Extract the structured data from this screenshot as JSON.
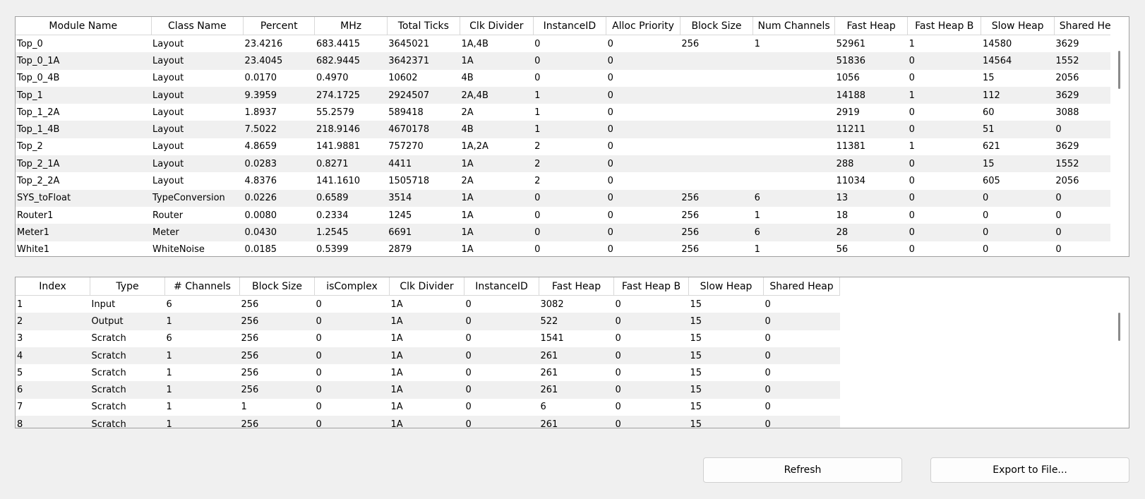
{
  "top": {
    "columns": [
      "Module Name",
      "Class Name",
      "Percent",
      "MHz",
      "Total Ticks",
      "Clk Divider",
      "InstanceID",
      "Alloc Priority",
      "Block Size",
      "Num Channels",
      "Fast Heap",
      "Fast Heap B",
      "Slow Heap",
      "Shared Heap"
    ],
    "rows": [
      [
        "Top_0",
        "Layout",
        "23.4216",
        "683.4415",
        "3645021",
        "1A,4B",
        "0",
        "0",
        "256",
        "1",
        "52961",
        "1",
        "14580",
        "3629"
      ],
      [
        "Top_0_1A",
        "Layout",
        "23.4045",
        "682.9445",
        "3642371",
        "1A",
        "0",
        "0",
        null,
        null,
        "51836",
        "0",
        "14564",
        "1552"
      ],
      [
        "Top_0_4B",
        "Layout",
        "0.0170",
        "0.4970",
        "10602",
        "4B",
        "0",
        "0",
        null,
        null,
        "1056",
        "0",
        "15",
        "2056"
      ],
      [
        "Top_1",
        "Layout",
        "9.3959",
        "274.1725",
        "2924507",
        "2A,4B",
        "1",
        "0",
        null,
        null,
        "14188",
        "1",
        "112",
        "3629"
      ],
      [
        "Top_1_2A",
        "Layout",
        "1.8937",
        "55.2579",
        "589418",
        "2A",
        "1",
        "0",
        null,
        null,
        "2919",
        "0",
        "60",
        "3088"
      ],
      [
        "Top_1_4B",
        "Layout",
        "7.5022",
        "218.9146",
        "4670178",
        "4B",
        "1",
        "0",
        null,
        null,
        "11211",
        "0",
        "51",
        "0"
      ],
      [
        "Top_2",
        "Layout",
        "4.8659",
        "141.9881",
        "757270",
        "1A,2A",
        "2",
        "0",
        null,
        null,
        "11381",
        "1",
        "621",
        "3629"
      ],
      [
        "Top_2_1A",
        "Layout",
        "0.0283",
        "0.8271",
        "4411",
        "1A",
        "2",
        "0",
        null,
        null,
        "288",
        "0",
        "15",
        "1552"
      ],
      [
        "Top_2_2A",
        "Layout",
        "4.8376",
        "141.1610",
        "1505718",
        "2A",
        "2",
        "0",
        null,
        null,
        "11034",
        "0",
        "605",
        "2056"
      ],
      [
        "SYS_toFloat",
        "TypeConversion",
        "0.0226",
        "0.6589",
        "3514",
        "1A",
        "0",
        "0",
        "256",
        "6",
        "13",
        "0",
        "0",
        "0"
      ],
      [
        "Router1",
        "Router",
        "0.0080",
        "0.2334",
        "1245",
        "1A",
        "0",
        "0",
        "256",
        "1",
        "18",
        "0",
        "0",
        "0"
      ],
      [
        "Meter1",
        "Meter",
        "0.0430",
        "1.2545",
        "6691",
        "1A",
        "0",
        "0",
        "256",
        "6",
        "28",
        "0",
        "0",
        "0"
      ],
      [
        "White1",
        "WhiteNoise",
        "0.0185",
        "0.5399",
        "2879",
        "1A",
        "0",
        "0",
        "256",
        "1",
        "56",
        "0",
        "0",
        "0"
      ]
    ]
  },
  "bottom": {
    "columns": [
      "Index",
      "Type",
      "# Channels",
      "Block Size",
      "isComplex",
      "Clk Divider",
      "InstanceID",
      "Fast Heap",
      "Fast Heap B",
      "Slow Heap",
      "Shared Heap"
    ],
    "rows": [
      [
        "1",
        "Input",
        "6",
        "256",
        "0",
        "1A",
        "0",
        "3082",
        "0",
        "15",
        "0"
      ],
      [
        "2",
        "Output",
        "1",
        "256",
        "0",
        "1A",
        "0",
        "522",
        "0",
        "15",
        "0"
      ],
      [
        "3",
        "Scratch",
        "6",
        "256",
        "0",
        "1A",
        "0",
        "1541",
        "0",
        "15",
        "0"
      ],
      [
        "4",
        "Scratch",
        "1",
        "256",
        "0",
        "1A",
        "0",
        "261",
        "0",
        "15",
        "0"
      ],
      [
        "5",
        "Scratch",
        "1",
        "256",
        "0",
        "1A",
        "0",
        "261",
        "0",
        "15",
        "0"
      ],
      [
        "6",
        "Scratch",
        "1",
        "256",
        "0",
        "1A",
        "0",
        "261",
        "0",
        "15",
        "0"
      ],
      [
        "7",
        "Scratch",
        "1",
        "1",
        "0",
        "1A",
        "0",
        "6",
        "0",
        "15",
        "0"
      ],
      [
        "8",
        "Scratch",
        "1",
        "256",
        "0",
        "1A",
        "0",
        "261",
        "0",
        "15",
        "0"
      ]
    ]
  },
  "buttons": {
    "refresh": "Refresh",
    "export": "Export to File..."
  }
}
